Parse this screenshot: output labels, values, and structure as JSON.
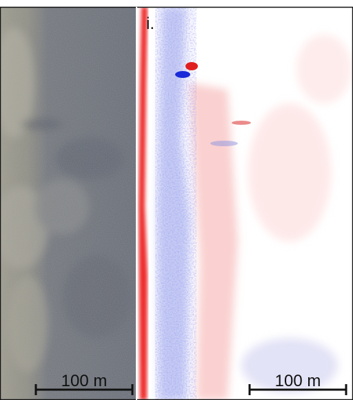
{
  "panel_label": "i.",
  "left_scale_bar": {
    "label": "100 m"
  },
  "right_scale_bar": {
    "label": "100 m"
  }
}
